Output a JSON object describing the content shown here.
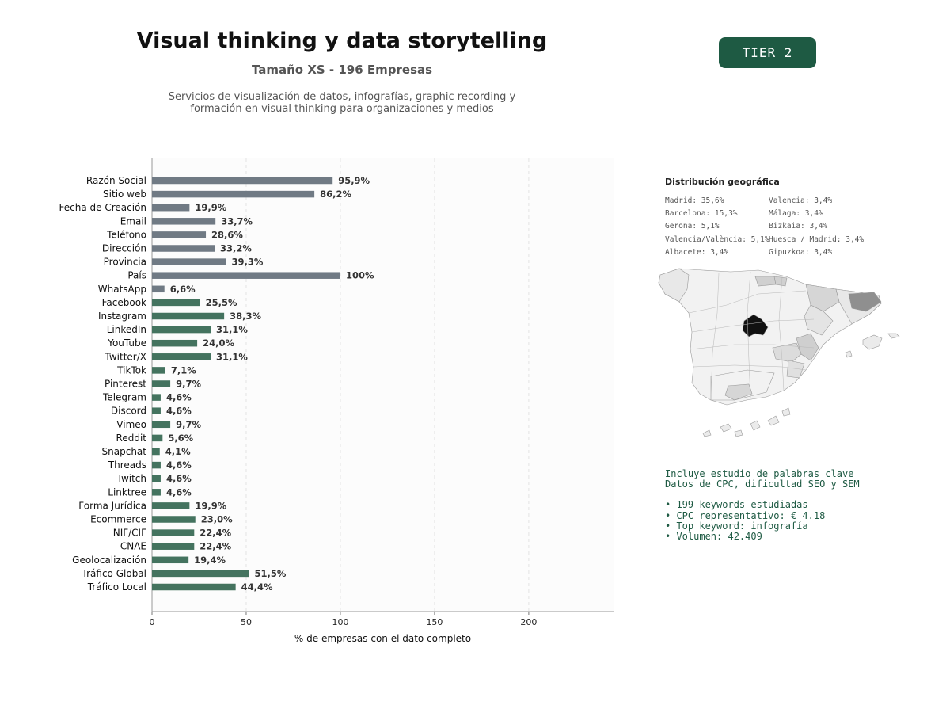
{
  "header": {
    "title": "Visual thinking y data storytelling",
    "subtitle": "Tamaño XS - 196 Empresas",
    "description_line1": "Servicios de visualización de datos, infografías, graphic recording y",
    "description_line2": "formación en visual thinking para organizaciones y medios",
    "tier_badge": "TIER 2"
  },
  "colors": {
    "gray_bar": "#707a84",
    "green_bar": "#44735f",
    "badge": "#1e5a43",
    "madrid": "#111111",
    "text_green": "#1e5a43"
  },
  "chart_data": {
    "type": "bar",
    "orientation": "horizontal",
    "categories": [
      "Razón Social",
      "Sitio web",
      "Fecha de Creación",
      "Email",
      "Teléfono",
      "Dirección",
      "Provincia",
      "País",
      "WhatsApp",
      "Facebook",
      "Instagram",
      "LinkedIn",
      "YouTube",
      "Twitter/X",
      "TikTok",
      "Pinterest",
      "Telegram",
      "Discord",
      "Vimeo",
      "Reddit",
      "Snapchat",
      "Threads",
      "Twitch",
      "Linktree",
      "Forma Jurídica",
      "Ecommerce",
      "NIF/CIF",
      "CNAE",
      "Geolocalización",
      "Tráfico Global",
      "Tráfico Local"
    ],
    "values": [
      95.9,
      86.2,
      19.9,
      33.7,
      28.6,
      33.2,
      39.3,
      100,
      6.6,
      25.5,
      38.3,
      31.1,
      24.0,
      31.1,
      7.1,
      9.7,
      4.6,
      4.6,
      9.7,
      5.6,
      4.1,
      4.6,
      4.6,
      4.6,
      19.9,
      23.0,
      22.4,
      22.4,
      19.4,
      51.5,
      44.4
    ],
    "value_labels": [
      "95,9%",
      "86,2%",
      "19,9%",
      "33,7%",
      "28,6%",
      "33,2%",
      "39,3%",
      "100%",
      "6,6%",
      "25,5%",
      "38,3%",
      "31,1%",
      "24,0%",
      "31,1%",
      "7,1%",
      "9,7%",
      "4,6%",
      "4,6%",
      "9,7%",
      "5,6%",
      "4,1%",
      "4,6%",
      "4,6%",
      "4,6%",
      "19,9%",
      "23,0%",
      "22,4%",
      "22,4%",
      "19,4%",
      "51,5%",
      "44,4%"
    ],
    "color_groups": [
      "gray",
      "gray",
      "gray",
      "gray",
      "gray",
      "gray",
      "gray",
      "gray",
      "gray",
      "green",
      "green",
      "green",
      "green",
      "green",
      "green",
      "green",
      "green",
      "green",
      "green",
      "green",
      "green",
      "green",
      "green",
      "green",
      "green",
      "green",
      "green",
      "green",
      "green",
      "green",
      "green"
    ],
    "xlabel": "% de empresas con el dato completo",
    "ylabel": "",
    "xlim": [
      0,
      245
    ],
    "xticks": [
      0,
      50,
      100,
      150,
      200
    ],
    "xtick_labels": [
      "0",
      "50",
      "100",
      "150",
      "200"
    ],
    "grid": "vertical dashed"
  },
  "geo": {
    "title": "Distribución geográfica",
    "col1": [
      "Madrid: 35,6%",
      "Barcelona: 15,3%",
      "Gerona: 5,1%",
      "Valencia/València: 5,1%",
      "Albacete: 3,4%"
    ],
    "col2": [
      "Valencia: 3,4%",
      "Málaga: 3,4%",
      "Bizkaia: 3,4%",
      "Huesca / Madrid: 3,4%",
      "Gipuzkoa: 3,4%"
    ]
  },
  "keywords": {
    "line1": "Incluye estudio de palabras clave",
    "line2": "Datos de CPC, dificultad SEO y SEM",
    "bullets": [
      "• 199 keywords estudiadas",
      "• CPC representativo: € 4.18",
      "• Top keyword: infografía",
      "• Volumen: 42.409"
    ]
  }
}
